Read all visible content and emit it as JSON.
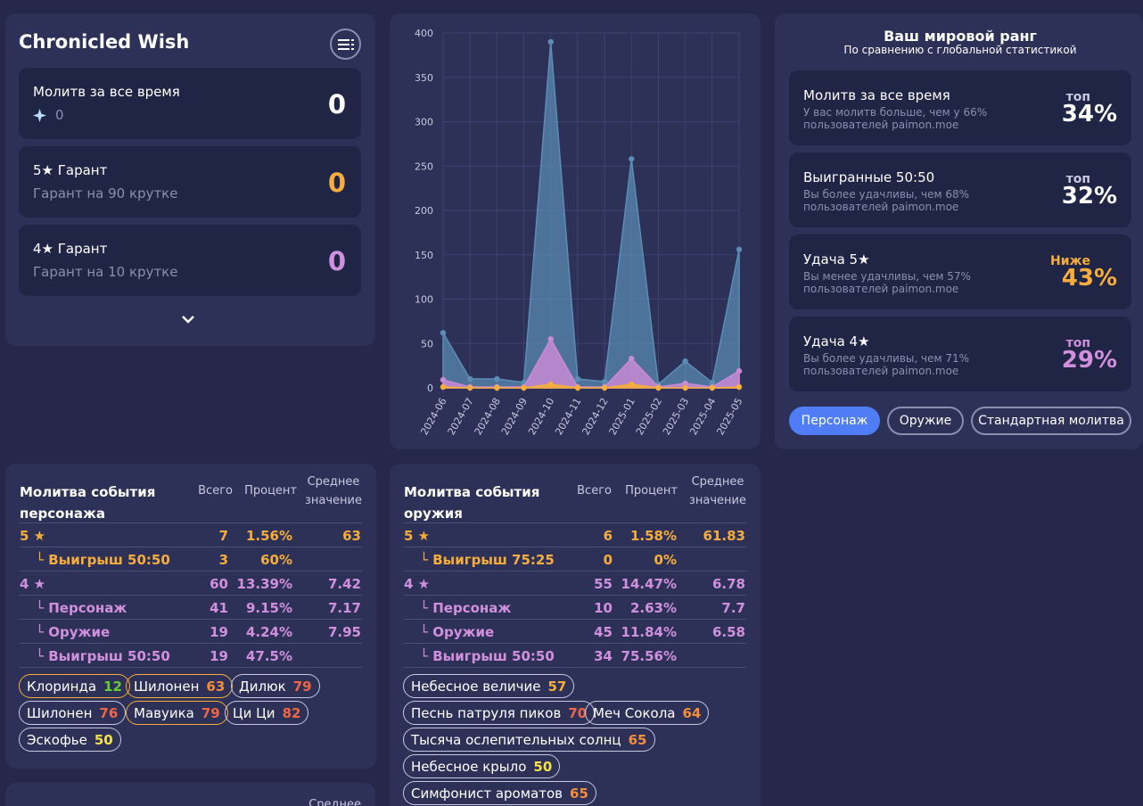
{
  "summary": {
    "title": "Chronicled Wish",
    "total_label": "Молитв за все время",
    "total_value": "0",
    "total_wishes_sub": "0",
    "five_label": "5★ Гарант",
    "five_sub": "Гарант на 90 крутке",
    "five_value": "0",
    "four_label": "4★ Гарант",
    "four_sub": "Гарант на 10 крутке",
    "four_value": "0"
  },
  "chart_data": {
    "type": "area",
    "x": [
      "2024-06",
      "2024-07",
      "2024-08",
      "2024-09",
      "2024-10",
      "2024-11",
      "2024-12",
      "2025-01",
      "2025-02",
      "2025-03",
      "2025-04",
      "2025-05"
    ],
    "ylim": [
      0,
      400
    ],
    "yticks": [
      "0",
      "50",
      "100",
      "150",
      "200",
      "250",
      "300",
      "350",
      "400"
    ],
    "grid": true,
    "series": [
      {
        "color": "#5b8db5",
        "values": [
          62,
          10,
          10,
          6,
          390,
          10,
          7,
          258,
          4,
          30,
          6,
          156
        ]
      },
      {
        "color": "#c98ad6",
        "values": [
          9,
          1,
          1,
          1,
          55,
          1,
          1,
          33,
          1,
          5,
          1,
          19
        ]
      },
      {
        "color": "#f6ad3c",
        "values": [
          1,
          0,
          0,
          0,
          4,
          0,
          0,
          4,
          0,
          0,
          0,
          1
        ]
      }
    ]
  },
  "rank": {
    "title": "Ваш мировой ранг",
    "subtitle": "По сравнению с глобальной статистикой",
    "items": [
      {
        "label": "Молитв за все время",
        "sub1": "У вас молитв больше, чем у 66%",
        "sub2": "пользователей paimon.moe",
        "kind": "топ",
        "pct": "34%",
        "color": "#ffffff",
        "kind_color": "#c7c9de"
      },
      {
        "label": "Выигранные 50:50",
        "sub1": "Вы более удачливы, чем 68%",
        "sub2": "пользователей paimon.moe",
        "kind": "топ",
        "pct": "32%",
        "color": "#ffffff",
        "kind_color": "#c7c9de"
      },
      {
        "label": "Удача 5★",
        "sub1": "Вы менее удачливы, чем 57%",
        "sub2": "пользователей paimon.moe",
        "kind": "Ниже",
        "pct": "43%",
        "color": "#f6ad3c",
        "kind_color": "#f6ad3c"
      },
      {
        "label": "Удача 4★",
        "sub1": "Вы более удачливы, чем 71%",
        "sub2": "пользователей paimon.moe",
        "kind": "топ",
        "pct": "29%",
        "color": "#d190de",
        "kind_color": "#d190de"
      }
    ],
    "buttons": [
      "Персонаж",
      "Оружие",
      "Стандартная молитва"
    ]
  },
  "char_table": {
    "title": "Молитва события персонажа",
    "h_total": "Всего",
    "h_pct": "Процент",
    "h_avg1": "Среднее",
    "h_avg2": "значение",
    "rows": [
      {
        "label": "5 ★",
        "total": "7",
        "pct": "1.56%",
        "avg": "63",
        "cls": "gold",
        "indent": false
      },
      {
        "label": "└ Выигрыш 50:50",
        "total": "3",
        "pct": "60%",
        "avg": "",
        "cls": "gold",
        "indent": true
      },
      {
        "label": "4 ★",
        "total": "60",
        "pct": "13.39%",
        "avg": "7.42",
        "cls": "purple",
        "indent": false
      },
      {
        "label": "└ Персонаж",
        "total": "41",
        "pct": "9.15%",
        "avg": "7.17",
        "cls": "purple",
        "indent": true
      },
      {
        "label": "└ Оружие",
        "total": "19",
        "pct": "4.24%",
        "avg": "7.95",
        "cls": "purple",
        "indent": true
      },
      {
        "label": "└ Выигрыш 50:50",
        "total": "19",
        "pct": "47.5%",
        "avg": "",
        "cls": "purple",
        "indent": true
      }
    ],
    "chips": [
      {
        "name": "Клоринда",
        "n": "12",
        "ncls": "n-green",
        "gold": true
      },
      {
        "name": "Шилонен",
        "n": "63",
        "ncls": "n-orange2",
        "gold": true
      },
      {
        "name": "Дилюк",
        "n": "79",
        "ncls": "n-red",
        "gold": false
      },
      {
        "name": "Шилонен",
        "n": "76",
        "ncls": "n-red",
        "gold": false
      },
      {
        "name": "Мавуика",
        "n": "79",
        "ncls": "n-red",
        "gold": true
      },
      {
        "name": "Ци Ци",
        "n": "82",
        "ncls": "n-red",
        "gold": false
      },
      {
        "name": "Эскофье",
        "n": "50",
        "ncls": "n-yellow",
        "gold": false
      }
    ]
  },
  "weapon_table": {
    "title": "Молитва события оружия",
    "h_total": "Всего",
    "h_pct": "Процент",
    "h_avg1": "Среднее",
    "h_avg2": "значение",
    "rows": [
      {
        "label": "5 ★",
        "total": "6",
        "pct": "1.58%",
        "avg": "61.83",
        "cls": "gold",
        "indent": false
      },
      {
        "label": "└ Выигрыш 75:25",
        "total": "0",
        "pct": "0%",
        "avg": "",
        "cls": "gold",
        "indent": true
      },
      {
        "label": "4 ★",
        "total": "55",
        "pct": "14.47%",
        "avg": "6.78",
        "cls": "purple",
        "indent": false
      },
      {
        "label": "└ Персонаж",
        "total": "10",
        "pct": "2.63%",
        "avg": "7.7",
        "cls": "purple",
        "indent": true
      },
      {
        "label": "└ Оружие",
        "total": "45",
        "pct": "11.84%",
        "avg": "6.58",
        "cls": "purple",
        "indent": true
      },
      {
        "label": "└ Выигрыш 50:50",
        "total": "34",
        "pct": "75.56%",
        "avg": "",
        "cls": "purple",
        "indent": true
      }
    ],
    "chips": [
      {
        "name": "Небесное величие",
        "n": "57",
        "ncls": "n-orange",
        "gold": false
      },
      {
        "name": "Песнь патруля пиков",
        "n": "70",
        "ncls": "n-red",
        "gold": false
      },
      {
        "name": "Меч Сокола",
        "n": "64",
        "ncls": "n-orange2",
        "gold": false
      },
      {
        "name": "Тысяча ослепительных солнц",
        "n": "65",
        "ncls": "n-orange2",
        "gold": false
      },
      {
        "name": "Небесное крыло",
        "n": "50",
        "ncls": "n-yellow",
        "gold": false
      },
      {
        "name": "Симфонист ароматов",
        "n": "65",
        "ncls": "n-orange2",
        "gold": false
      }
    ]
  },
  "bottom_card": {
    "h_avg1": "Среднее"
  }
}
